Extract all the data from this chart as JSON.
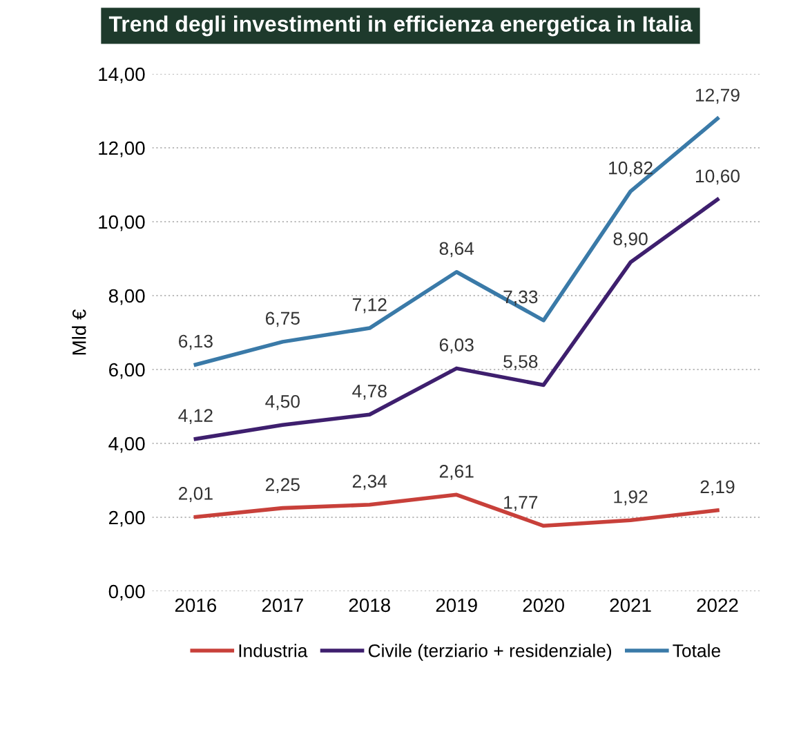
{
  "chart_data": {
    "type": "line",
    "title": "Trend degli investimenti in efficienza energetica in Italia",
    "ylabel": "Mld €",
    "categories": [
      "2016",
      "2017",
      "2018",
      "2019",
      "2020",
      "2021",
      "2022"
    ],
    "series": [
      {
        "name": "Industria",
        "color": "#c8403a",
        "values": [
          2.01,
          2.25,
          2.34,
          2.61,
          1.77,
          1.92,
          2.19
        ],
        "value_labels": [
          "2,01",
          "2,25",
          "2,34",
          "2,61",
          "1,77",
          "1,92",
          "2,19"
        ]
      },
      {
        "name": "Civile (terziario + residenziale)",
        "color": "#3e1f6e",
        "values": [
          4.12,
          4.5,
          4.78,
          6.03,
          5.58,
          8.9,
          10.6
        ],
        "value_labels": [
          "4,12",
          "4,50",
          "4,78",
          "6,03",
          "5,58",
          "8,90",
          "10,60"
        ]
      },
      {
        "name": "Totale",
        "color": "#3a7aa8",
        "values": [
          6.13,
          6.75,
          7.12,
          8.64,
          7.33,
          10.82,
          12.79
        ],
        "value_labels": [
          "6,13",
          "6,75",
          "7,12",
          "8,64",
          "7,33",
          "10,82",
          "12,79"
        ]
      }
    ],
    "ylim": [
      0,
      14
    ],
    "yticks": [
      {
        "value": 0,
        "label": "0,00"
      },
      {
        "value": 2,
        "label": "2,00"
      },
      {
        "value": 4,
        "label": "4,00"
      },
      {
        "value": 6,
        "label": "6,00"
      },
      {
        "value": 8,
        "label": "8,00"
      },
      {
        "value": 10,
        "label": "10,00"
      },
      {
        "value": 12,
        "label": "12,00"
      },
      {
        "value": 14,
        "label": "14,00"
      }
    ],
    "grid": "y",
    "legend": "bottom",
    "marker": "none",
    "line_style": "solid"
  }
}
